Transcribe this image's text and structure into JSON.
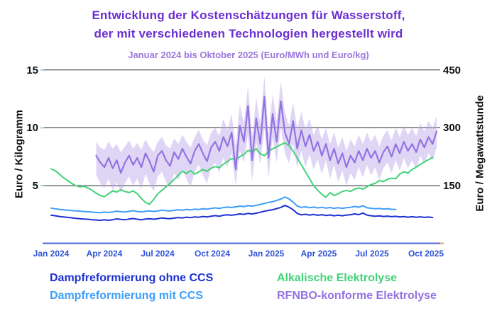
{
  "header": {
    "title_line1": "Entwicklung der Kostenschätzungen für Wasserstoff,",
    "title_line2": "der mit verschiedenen Technologien hergestellt wird",
    "subtitle": "Januar 2024 bis Oktober 2025 (Euro/MWh und Euro/kg)",
    "title_color": "#6a2ed2",
    "subtitle_color": "#9b76db"
  },
  "chart_data": {
    "type": "line",
    "title": "Entwicklung der Kostenschätzungen für Wasserstoff, der mit verschiedenen Technologien hergestellt wird",
    "subtitle": "Januar 2024 bis Oktober 2025 (Euro/MWh und Euro/kg)",
    "x_unit": "weeks since 2024-01-01",
    "x_axis": {
      "tick_labels": [
        "Jan 2024",
        "Apr 2024",
        "Jul 2024",
        "Oct 2024",
        "Jan 2025",
        "Apr 2025",
        "Jul 2025",
        "Oct 2025"
      ],
      "tick_weeks": [
        0,
        13.1,
        26.1,
        39.3,
        52.4,
        65.3,
        78.3,
        91.4
      ],
      "label_color": "#2e52d8",
      "axis_color": "#5066cf",
      "axis_end_tick_color": "#e0a35f"
    },
    "y_left": {
      "label": "Euro / Kilogramm",
      "ticks": [
        5,
        10,
        15
      ],
      "min": 0,
      "max": 15.8
    },
    "y_right": {
      "label": "Euro / Megawattstunde",
      "ticks": [
        150,
        300,
        450
      ],
      "per_left_unit": 30
    },
    "grid": {
      "show": true,
      "color": "#2b2b2b",
      "tick_stub_color": "#8fd8f2"
    },
    "legend_position": "bottom-two-columns",
    "series": [
      {
        "name": "Dampfreformierung ohne CCS",
        "color": "#1c30d3",
        "start_week": 0,
        "values": [
          2.45,
          2.4,
          2.34,
          2.3,
          2.26,
          2.22,
          2.18,
          2.15,
          2.12,
          2.1,
          2.06,
          2.03,
          2.0,
          2.05,
          2.01,
          2.06,
          2.13,
          2.08,
          2.05,
          2.11,
          2.16,
          2.1,
          2.06,
          2.11,
          2.15,
          2.1,
          2.15,
          2.21,
          2.17,
          2.14,
          2.2,
          2.25,
          2.21,
          2.28,
          2.24,
          2.3,
          2.27,
          2.34,
          2.3,
          2.36,
          2.41,
          2.36,
          2.44,
          2.48,
          2.44,
          2.5,
          2.56,
          2.52,
          2.6,
          2.56,
          2.62,
          2.7,
          2.79,
          2.86,
          2.92,
          3.02,
          3.12,
          3.3,
          3.14,
          2.92,
          2.6,
          2.48,
          2.53,
          2.46,
          2.51,
          2.44,
          2.49,
          2.42,
          2.47,
          2.4,
          2.45,
          2.4,
          2.46,
          2.49,
          2.56,
          2.5,
          2.63,
          2.46,
          2.4,
          2.36,
          2.39,
          2.34,
          2.37,
          2.32,
          2.35,
          2.3,
          2.33,
          2.28,
          2.32,
          2.27,
          2.31,
          2.26,
          2.29,
          2.25
        ]
      },
      {
        "name": "Dampfreformierung mit CCS",
        "color": "#3f9ef8",
        "start_week": 0,
        "values": [
          3.06,
          3.0,
          2.95,
          2.91,
          2.88,
          2.85,
          2.82,
          2.8,
          2.77,
          2.75,
          2.71,
          2.69,
          2.67,
          2.72,
          2.68,
          2.73,
          2.8,
          2.75,
          2.72,
          2.78,
          2.84,
          2.77,
          2.73,
          2.78,
          2.82,
          2.77,
          2.82,
          2.88,
          2.84,
          2.81,
          2.87,
          2.92,
          2.88,
          2.95,
          2.91,
          2.97,
          2.94,
          3.01,
          2.97,
          3.03,
          3.08,
          3.03,
          3.11,
          3.15,
          3.11,
          3.17,
          3.23,
          3.19,
          3.27,
          3.23,
          3.3,
          3.38,
          3.47,
          3.55,
          3.62,
          3.72,
          3.84,
          4.02,
          3.86,
          3.58,
          3.24,
          3.12,
          3.17,
          3.1,
          3.15,
          3.08,
          3.13,
          3.06,
          3.11,
          3.04,
          3.09,
          3.04,
          3.1,
          3.13,
          3.2,
          3.14,
          3.27,
          3.1,
          3.04,
          3.0,
          3.03,
          2.98,
          3.01,
          2.96,
          2.94
        ]
      },
      {
        "name": "Alkalische Elektrolyse",
        "color": "#41d376",
        "start_week": 0,
        "values": [
          6.45,
          6.3,
          6.0,
          5.7,
          5.45,
          5.2,
          5.0,
          4.9,
          4.95,
          4.8,
          4.6,
          4.35,
          4.15,
          4.05,
          4.3,
          4.55,
          4.45,
          4.65,
          4.5,
          4.4,
          4.55,
          4.3,
          3.9,
          3.55,
          3.4,
          3.8,
          4.3,
          4.6,
          4.9,
          5.2,
          5.55,
          5.9,
          6.25,
          6.05,
          6.3,
          6.0,
          6.2,
          6.4,
          6.25,
          6.5,
          6.65,
          6.55,
          6.85,
          7.1,
          7.35,
          7.25,
          7.5,
          7.7,
          8.05,
          7.9,
          8.2,
          7.75,
          7.6,
          7.95,
          8.2,
          8.35,
          8.55,
          8.7,
          8.45,
          8.0,
          7.4,
          6.8,
          6.2,
          5.6,
          5.0,
          4.6,
          4.25,
          4.0,
          4.4,
          4.15,
          4.3,
          4.5,
          4.6,
          4.5,
          4.7,
          4.8,
          4.7,
          4.9,
          5.1,
          5.2,
          5.45,
          5.35,
          5.55,
          5.65,
          5.6,
          6.0,
          6.2,
          6.1,
          6.4,
          6.6,
          6.85,
          7.05,
          7.25,
          7.45
        ]
      },
      {
        "name": "RFNBO-konforme Elektrolyse",
        "color": "#9273e2",
        "start_week": 11,
        "values": [
          7.6,
          7.0,
          6.6,
          7.4,
          6.5,
          7.2,
          6.1,
          7.0,
          7.6,
          6.8,
          7.4,
          6.6,
          7.8,
          7.1,
          6.2,
          7.6,
          8.0,
          7.2,
          6.7,
          7.9,
          7.3,
          8.2,
          7.5,
          6.9,
          8.0,
          8.6,
          7.8,
          7.1,
          8.3,
          8.8,
          8.0,
          9.2,
          8.4,
          9.6,
          6.4,
          10.2,
          8.8,
          11.9,
          7.2,
          10.8,
          8.6,
          12.7,
          7.4,
          11.2,
          8.8,
          12.3,
          9.6,
          8.6,
          10.6,
          8.2,
          9.8,
          8.4,
          9.4,
          8.0,
          8.8,
          7.6,
          8.6,
          7.2,
          8.2,
          6.9,
          7.8,
          6.6,
          7.6,
          7.0,
          8.0,
          7.2,
          8.2,
          7.4,
          8.0,
          7.0,
          7.9,
          8.4,
          7.5,
          8.6,
          7.8,
          8.8,
          8.0,
          8.6,
          7.9,
          9.0,
          8.3,
          9.2,
          8.6,
          9.7
        ],
        "band": {
          "color": "#b9a4ec",
          "opacity": 0.45,
          "upper": [
            8.8,
            8.3,
            8.1,
            8.8,
            8.2,
            8.6,
            7.9,
            8.4,
            8.9,
            8.2,
            8.7,
            8.1,
            9.0,
            8.4,
            7.9,
            8.8,
            9.2,
            8.5,
            8.2,
            9.1,
            8.6,
            9.4,
            8.8,
            8.3,
            9.2,
            9.8,
            9.0,
            8.5,
            9.6,
            10.0,
            9.3,
            10.8,
            9.8,
            11.2,
            8.4,
            12.0,
            10.4,
            13.6,
            9.2,
            12.6,
            10.3,
            14.5,
            9.5,
            12.9,
            10.6,
            14.0,
            11.3,
            10.2,
            12.2,
            9.9,
            11.4,
            9.9,
            10.8,
            9.4,
            10.2,
            9.0,
            10.0,
            8.6,
            9.6,
            8.3,
            9.2,
            8.0,
            9.0,
            8.4,
            9.4,
            8.6,
            9.6,
            8.8,
            9.4,
            8.4,
            9.3,
            9.8,
            8.9,
            10.0,
            9.2,
            10.2,
            9.4,
            10.0,
            9.3,
            10.4,
            9.7,
            10.6,
            10.0,
            11.0
          ],
          "lower": [
            5.9,
            5.2,
            4.8,
            5.6,
            4.6,
            5.3,
            4.4,
            5.2,
            5.8,
            5.0,
            5.6,
            4.7,
            6.0,
            5.2,
            4.5,
            5.8,
            6.2,
            5.3,
            4.8,
            6.1,
            5.5,
            6.4,
            5.6,
            4.9,
            6.2,
            6.8,
            5.9,
            5.2,
            6.5,
            7.0,
            6.1,
            7.4,
            6.6,
            7.8,
            5.0,
            8.0,
            7.0,
            9.4,
            5.4,
            8.8,
            6.8,
            10.0,
            5.6,
            9.2,
            7.0,
            10.1,
            7.8,
            6.9,
            8.7,
            6.5,
            8.0,
            6.6,
            7.7,
            6.4,
            7.3,
            6.0,
            7.2,
            5.6,
            6.8,
            5.3,
            6.3,
            5.0,
            6.1,
            5.5,
            6.6,
            5.7,
            6.8,
            5.9,
            6.6,
            5.5,
            6.5,
            7.0,
            6.1,
            7.2,
            6.3,
            7.4,
            6.5,
            7.2,
            6.4,
            7.6,
            6.9,
            7.8,
            7.1,
            8.3
          ]
        }
      }
    ]
  }
}
